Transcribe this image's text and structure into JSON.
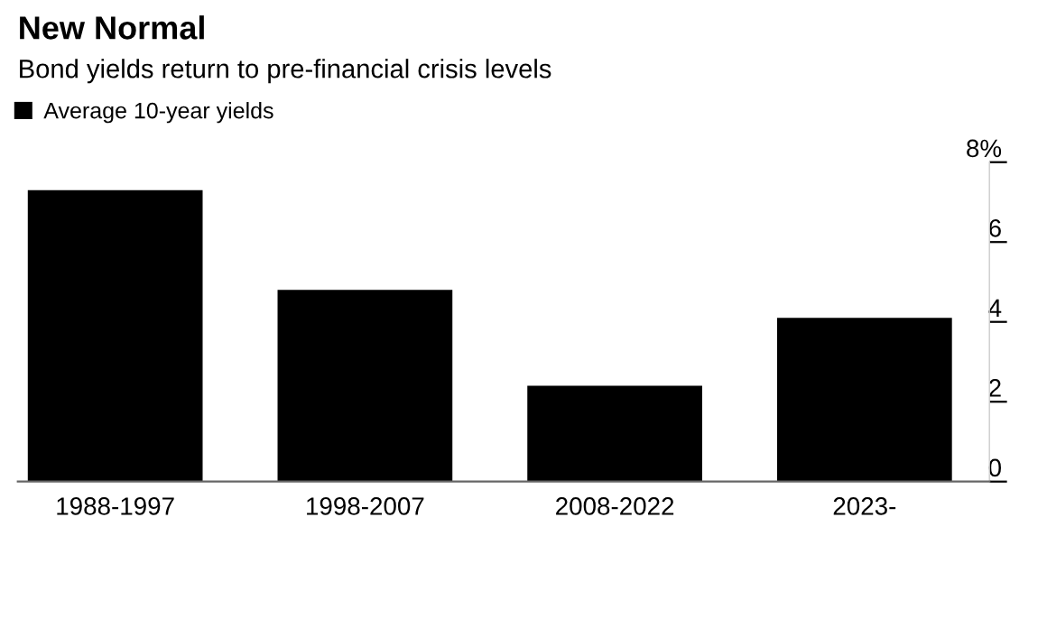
{
  "chart_data": {
    "type": "bar",
    "title": "New Normal",
    "subtitle": "Bond yields return to pre-financial crisis levels",
    "categories": [
      "1988-1997",
      "1998-2007",
      "2008-2022",
      "2023-"
    ],
    "series": [
      {
        "name": "Average 10-year yields",
        "color": "#000000",
        "values": [
          7.3,
          4.8,
          2.4,
          4.1
        ]
      }
    ],
    "ylim": [
      0,
      8
    ],
    "yticks": [
      0,
      2,
      4,
      6,
      {
        "value": 8,
        "label": "8%"
      }
    ],
    "grid": false,
    "legend": "top left"
  }
}
